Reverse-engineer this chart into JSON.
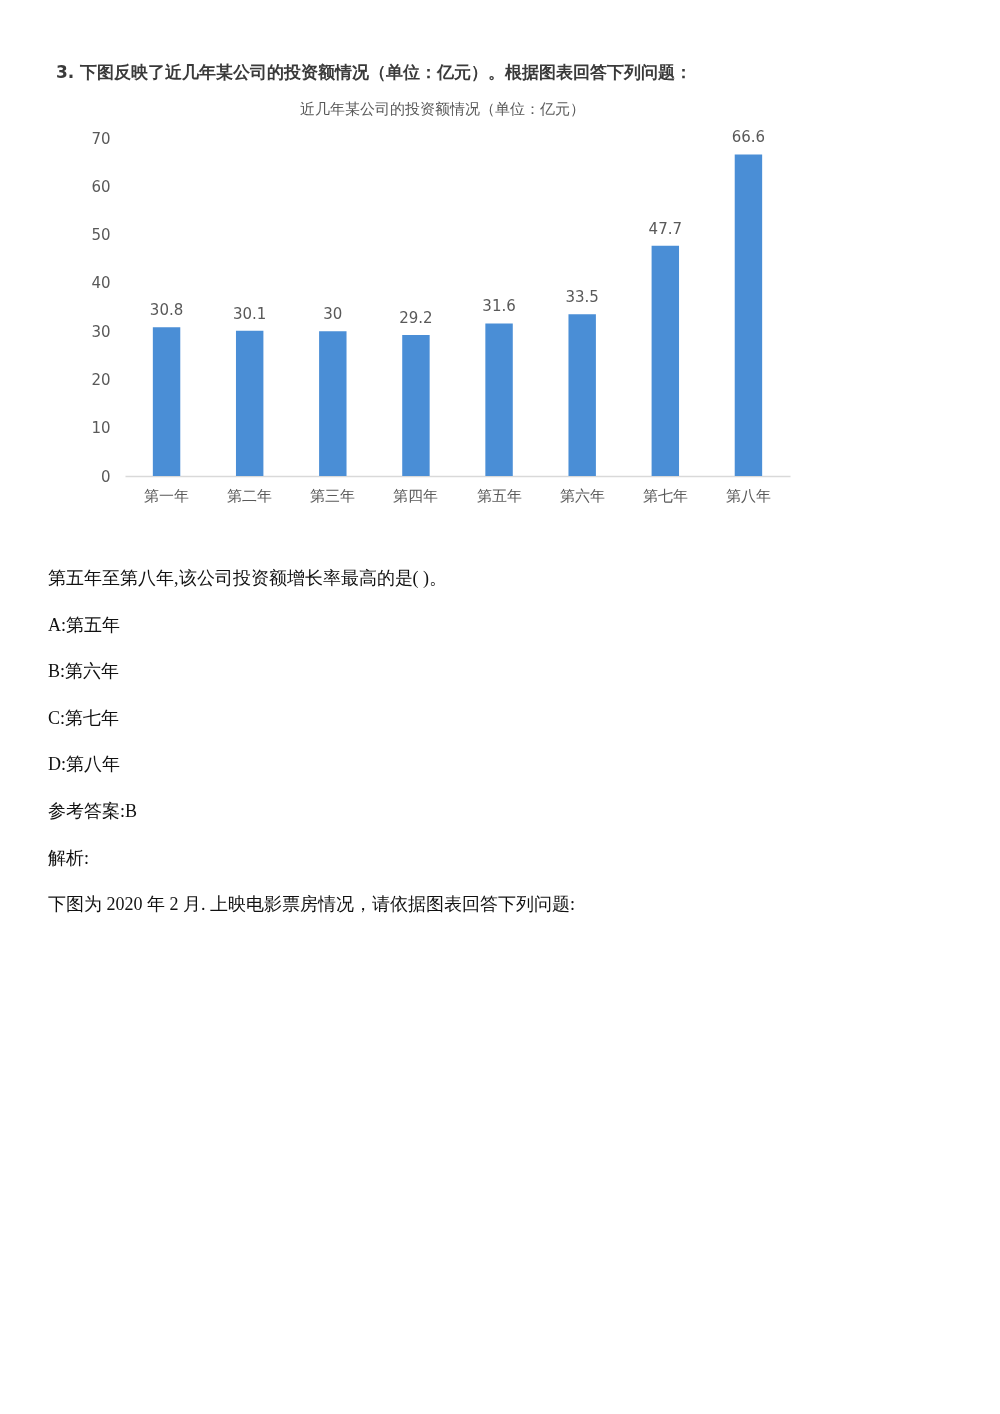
{
  "chart_data": {
    "type": "bar",
    "title": "近几年某公司的投资额情况（单位：亿元）",
    "categories": [
      "第一年",
      "第二年",
      "第三年",
      "第四年",
      "第五年",
      "第六年",
      "第七年",
      "第八年"
    ],
    "values": [
      30.8,
      30.1,
      30,
      29.2,
      31.6,
      33.5,
      47.7,
      66.6
    ],
    "color": "#4a8ed6",
    "ylim": [
      0,
      70
    ],
    "yticks": [
      0,
      10,
      20,
      30,
      40,
      50,
      60,
      70
    ],
    "data_labels": true,
    "annotations": [
      "3. 下图反映了近几年某公司的投资额情况（单位：亿元）。根据图表回答下列问题：",
      "第五年至第八年,该公司投资额增长率最高的是( )。",
      "A:第五年",
      "B:第六年",
      "C:第七年",
      "D:第八年",
      "参考答案:B",
      "解析:",
      "下图为 2020 年 2 月. 上映电影票房情况，请依据图表回答下列问题:"
    ]
  }
}
